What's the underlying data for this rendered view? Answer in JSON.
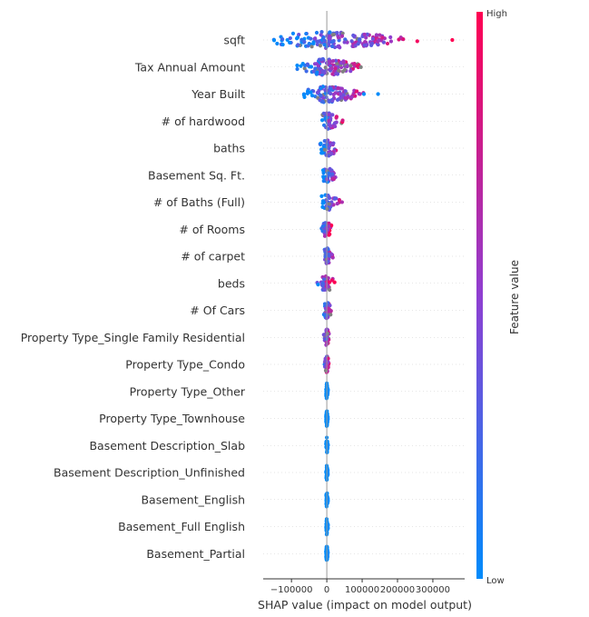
{
  "chart_data": {
    "type": "scatter",
    "subtype": "shap-beeswarm",
    "title": "",
    "xlabel": "SHAP value (impact on model output)",
    "xlim": [
      -180000,
      390000
    ],
    "xticks": [
      -100000,
      0,
      100000,
      200000,
      300000
    ],
    "xtick_labels": [
      "−100000",
      "0",
      "100000",
      "200000",
      "300000"
    ],
    "grid": false,
    "colorbar": {
      "title": "Feature value",
      "high_label": "High",
      "low_label": "Low",
      "low_color": "#008bfb",
      "mid_color": "#8f3fd1",
      "high_color": "#ff0052",
      "missing_color": "#808080"
    },
    "features": [
      {
        "name": "sqft",
        "spread": [
          -155000,
          355000
        ],
        "colors": "mixed",
        "outliers": [
          355000
        ]
      },
      {
        "name": "Tax Annual Amount",
        "spread": [
          -90000,
          130000
        ],
        "colors": "mixed"
      },
      {
        "name": "Year Built",
        "spread": [
          -65000,
          145000
        ],
        "colors": "mixed",
        "outliers": [
          105000,
          145000
        ]
      },
      {
        "name": "# of hardwood",
        "spread": [
          -25000,
          62000
        ],
        "colors": "mixed"
      },
      {
        "name": "baths",
        "spread": [
          -22000,
          63000
        ],
        "colors": "mixed"
      },
      {
        "name": "Basement Sq. Ft.",
        "spread": [
          -12000,
          45000
        ],
        "colors": "mixed"
      },
      {
        "name": "# of Baths (Full)",
        "spread": [
          -15000,
          65000
        ],
        "colors": "mixed"
      },
      {
        "name": "# of Rooms",
        "spread": [
          -20000,
          15000
        ],
        "colors": "mixed"
      },
      {
        "name": "# of carpet",
        "spread": [
          -12000,
          25000
        ],
        "colors": "mixed"
      },
      {
        "name": "beds",
        "spread": [
          -38000,
          25000
        ],
        "colors": "mixed"
      },
      {
        "name": "# Of Cars",
        "spread": [
          -12000,
          22000
        ],
        "colors": "mixed"
      },
      {
        "name": "Property Type_Single Family Residential",
        "spread": [
          -12000,
          10000
        ],
        "colors": "mixed"
      },
      {
        "name": "Property Type_Condo",
        "spread": [
          -10000,
          8000
        ],
        "colors": "mixed"
      },
      {
        "name": "Property Type_Other",
        "spread": [
          -2000,
          3000
        ],
        "colors": "low"
      },
      {
        "name": "Property Type_Townhouse",
        "spread": [
          -2000,
          3000
        ],
        "colors": "low"
      },
      {
        "name": "Basement Description_Slab",
        "spread": [
          -2000,
          3000
        ],
        "colors": "low"
      },
      {
        "name": "Basement Description_Unfinished",
        "spread": [
          -2000,
          3000
        ],
        "colors": "low"
      },
      {
        "name": "Basement_English",
        "spread": [
          -2000,
          3000
        ],
        "colors": "low"
      },
      {
        "name": "Basement_Full English",
        "spread": [
          -2000,
          3000
        ],
        "colors": "low"
      },
      {
        "name": "Basement_Partial",
        "spread": [
          -2000,
          3000
        ],
        "colors": "low"
      }
    ]
  }
}
